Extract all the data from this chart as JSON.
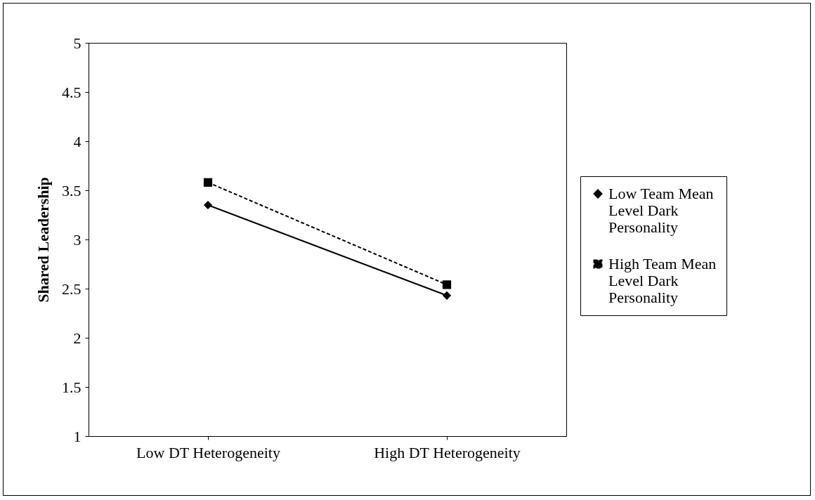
{
  "chart_data": {
    "type": "line",
    "categories": [
      "Low DT Heterogeneity",
      "High DT Heterogeneity"
    ],
    "ylabel": "Shared Leadership",
    "ylim": [
      1,
      5
    ],
    "yticks": [
      1,
      1.5,
      2,
      2.5,
      3,
      3.5,
      4,
      4.5,
      5
    ],
    "grid": false,
    "legend": "right",
    "series": [
      {
        "name": "Low Team Mean Level Dark Personality",
        "color": "#000000",
        "values": [
          3.35,
          2.43
        ],
        "marker": "diamond",
        "line_style": "solid"
      },
      {
        "name": "High Team Mean Level Dark Personality",
        "color": "#000000",
        "values": [
          3.58,
          2.54
        ],
        "marker": "square",
        "line_style": "dashed"
      }
    ]
  }
}
